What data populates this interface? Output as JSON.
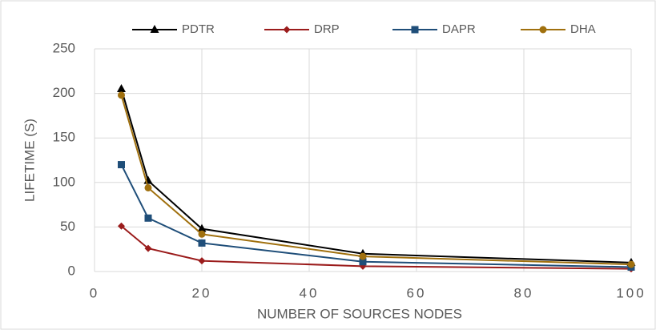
{
  "chart_data": {
    "type": "line",
    "x": [
      5,
      10,
      20,
      50,
      100
    ],
    "xlabel": "NUMBER OF SOURCES NODES",
    "ylabel": "LIFETIME (S)",
    "xlim": [
      0,
      100
    ],
    "xticks": [
      0,
      20,
      40,
      60,
      80,
      100
    ],
    "ylim": [
      0,
      250
    ],
    "yticks": [
      0,
      50,
      100,
      150,
      200,
      250
    ],
    "grid": true,
    "legend": "top",
    "series": [
      {
        "name": "PDTR",
        "color": "#000000",
        "marker": "triangle",
        "values": [
          205,
          102,
          48,
          20,
          10
        ]
      },
      {
        "name": "DRP",
        "color": "#9b1c1c",
        "marker": "diamond",
        "values": [
          51,
          26,
          12,
          6,
          3
        ]
      },
      {
        "name": "DAPR",
        "color": "#1f4e79",
        "marker": "square",
        "values": [
          120,
          60,
          32,
          11,
          5
        ]
      },
      {
        "name": "DHA",
        "color": "#a0700e",
        "marker": "circle",
        "values": [
          198,
          94,
          42,
          17,
          8
        ]
      }
    ]
  }
}
